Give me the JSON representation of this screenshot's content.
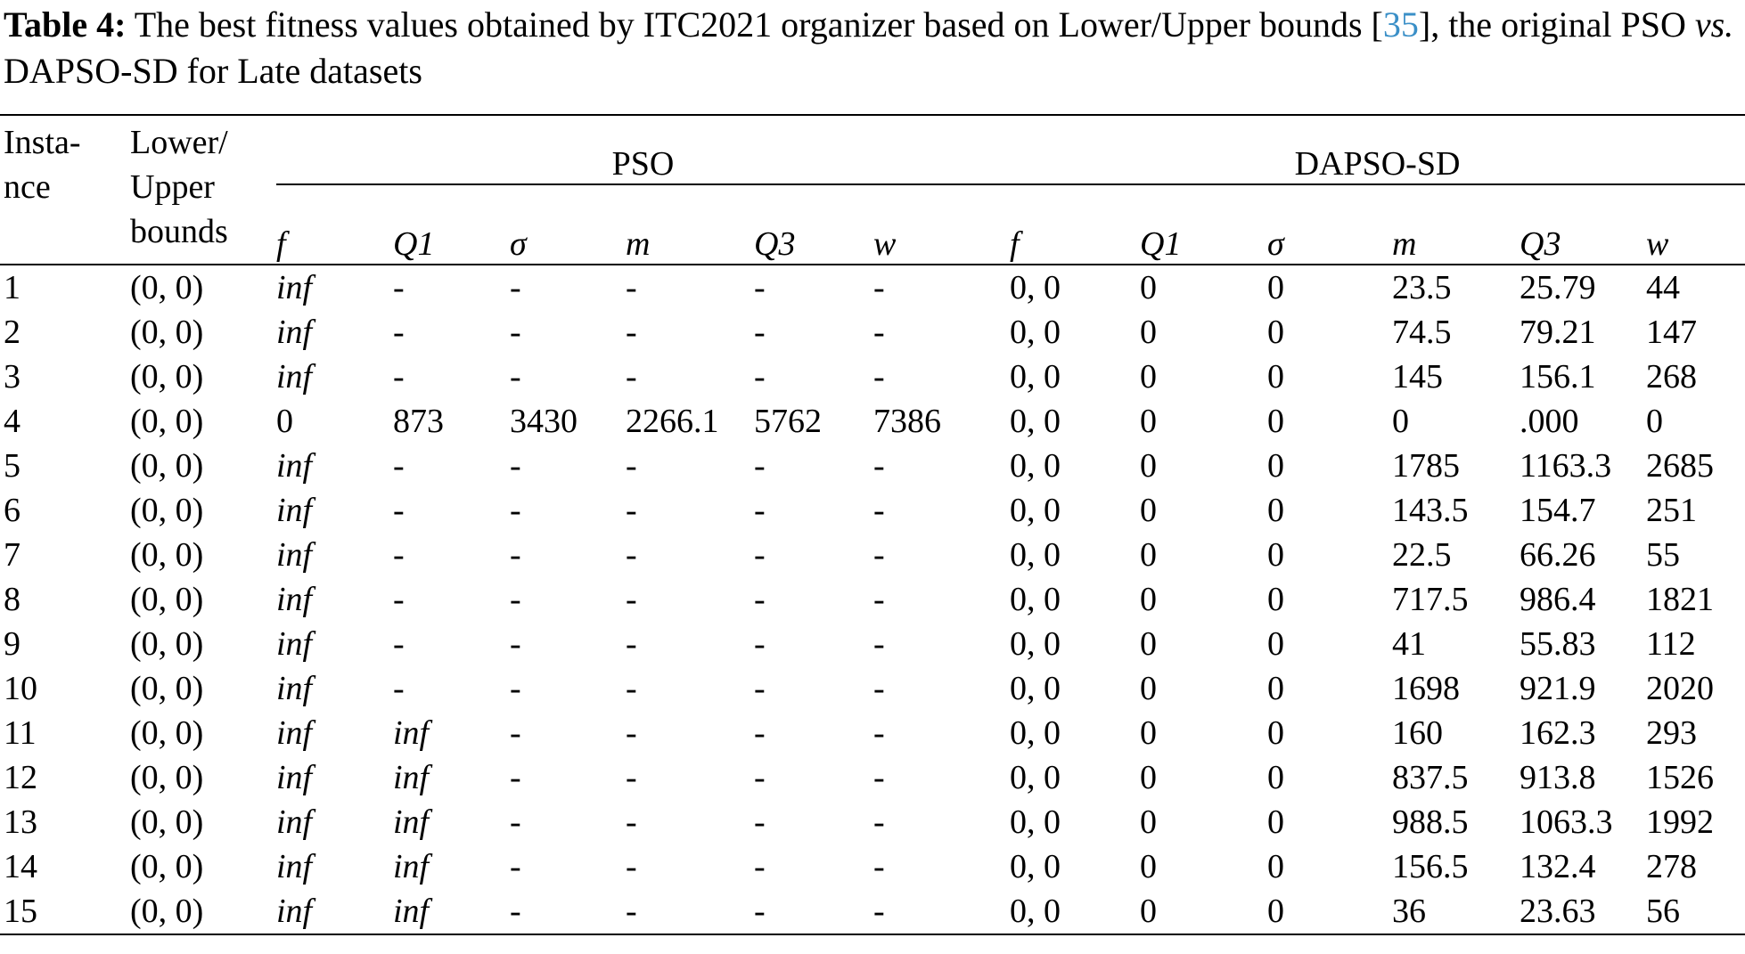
{
  "caption": {
    "label": "Table 4:",
    "text_1": " The best fitness values obtained by ITC2021 organizer based on Lower/Upper bounds [",
    "ref": "35",
    "text_2": "], the original PSO ",
    "vs": "vs.",
    "text_3": " DAPSO-SD for Late datasets"
  },
  "table": {
    "headers": {
      "instance": [
        "Insta-",
        "nce"
      ],
      "bounds": [
        "Lower/",
        "Upper",
        "bounds"
      ],
      "pso_group": "PSO",
      "dapso_group": "DAPSO-SD",
      "sub": [
        "f",
        "Q1",
        "σ",
        "m",
        "Q3",
        "w"
      ]
    },
    "rows": [
      {
        "instance": "1",
        "bounds": "(0, 0)",
        "pso": [
          "inf",
          "-",
          "-",
          "-",
          "-",
          "-"
        ],
        "dapso": [
          "0, 0",
          "0",
          "0",
          "23.5",
          "25.79",
          "44"
        ]
      },
      {
        "instance": "2",
        "bounds": "(0, 0)",
        "pso": [
          "inf",
          "-",
          "-",
          "-",
          "-",
          "-"
        ],
        "dapso": [
          "0, 0",
          "0",
          "0",
          "74.5",
          "79.21",
          "147"
        ]
      },
      {
        "instance": "3",
        "bounds": "(0, 0)",
        "pso": [
          "inf",
          "-",
          "-",
          "-",
          "-",
          "-"
        ],
        "dapso": [
          "0, 0",
          "0",
          "0",
          "145",
          "156.1",
          "268"
        ]
      },
      {
        "instance": "4",
        "bounds": "(0, 0)",
        "pso": [
          "0",
          "873",
          "3430",
          "2266.1",
          "5762",
          "7386"
        ],
        "dapso": [
          "0, 0",
          "0",
          "0",
          "0",
          ".000",
          "0"
        ]
      },
      {
        "instance": "5",
        "bounds": "(0, 0)",
        "pso": [
          "inf",
          "-",
          "-",
          "-",
          "-",
          "-"
        ],
        "dapso": [
          "0, 0",
          "0",
          "0",
          "1785",
          "1163.3",
          "2685"
        ]
      },
      {
        "instance": "6",
        "bounds": "(0, 0)",
        "pso": [
          "inf",
          "-",
          "-",
          "-",
          "-",
          "-"
        ],
        "dapso": [
          "0, 0",
          "0",
          "0",
          "143.5",
          "154.7",
          "251"
        ]
      },
      {
        "instance": "7",
        "bounds": "(0, 0)",
        "pso": [
          "inf",
          "-",
          "-",
          "-",
          "-",
          "-"
        ],
        "dapso": [
          "0, 0",
          "0",
          "0",
          "22.5",
          "66.26",
          "55"
        ]
      },
      {
        "instance": "8",
        "bounds": "(0, 0)",
        "pso": [
          "inf",
          "-",
          "-",
          "-",
          "-",
          "-"
        ],
        "dapso": [
          "0, 0",
          "0",
          "0",
          "717.5",
          "986.4",
          "1821"
        ]
      },
      {
        "instance": "9",
        "bounds": "(0, 0)",
        "pso": [
          "inf",
          "-",
          "-",
          "-",
          "-",
          "-"
        ],
        "dapso": [
          "0, 0",
          "0",
          "0",
          "41",
          "55.83",
          "112"
        ]
      },
      {
        "instance": "10",
        "bounds": "(0, 0)",
        "pso": [
          "inf",
          "-",
          "-",
          "-",
          "-",
          "-"
        ],
        "dapso": [
          "0, 0",
          "0",
          "0",
          "1698",
          "921.9",
          "2020"
        ]
      },
      {
        "instance": "11",
        "bounds": "(0, 0)",
        "pso": [
          "inf",
          "inf",
          "-",
          "-",
          "-",
          "-"
        ],
        "dapso": [
          "0, 0",
          "0",
          "0",
          "160",
          "162.3",
          "293"
        ]
      },
      {
        "instance": "12",
        "bounds": "(0, 0)",
        "pso": [
          "inf",
          "inf",
          "-",
          "-",
          "-",
          "-"
        ],
        "dapso": [
          "0, 0",
          "0",
          "0",
          "837.5",
          "913.8",
          "1526"
        ]
      },
      {
        "instance": "13",
        "bounds": "(0, 0)",
        "pso": [
          "inf",
          "inf",
          "-",
          "-",
          "-",
          "-"
        ],
        "dapso": [
          "0, 0",
          "0",
          "0",
          "988.5",
          "1063.3",
          "1992"
        ]
      },
      {
        "instance": "14",
        "bounds": "(0, 0)",
        "pso": [
          "inf",
          "inf",
          "-",
          "-",
          "-",
          "-"
        ],
        "dapso": [
          "0, 0",
          "0",
          "0",
          "156.5",
          "132.4",
          "278"
        ]
      },
      {
        "instance": "15",
        "bounds": "(0, 0)",
        "pso": [
          "inf",
          "inf",
          "-",
          "-",
          "-",
          "-"
        ],
        "dapso": [
          "0, 0",
          "0",
          "0",
          "36",
          "23.63",
          "56"
        ]
      }
    ]
  }
}
